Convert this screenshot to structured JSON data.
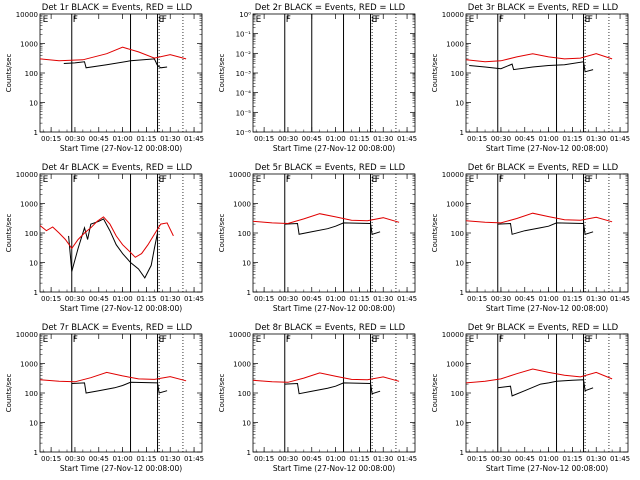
{
  "page": {
    "xlabel": "Start Time (27-Nov-12 00:08:00)",
    "ylabel": "Counts/sec",
    "series_colors": {
      "events": "#000000",
      "lld": "#e00000"
    }
  },
  "chart_data": [
    {
      "type": "line",
      "title": "Det 1r  BLACK = Events, RED = LLD",
      "xlabel": "Start Time (27-Nov-12 00:08:00)",
      "ylabel": "Counts/sec",
      "yscale": "log",
      "ylim": [
        1,
        10000
      ],
      "yticks": [
        1,
        10,
        100,
        1000,
        10000
      ],
      "ytick_labels": [
        "1",
        "10",
        "100",
        "1000",
        "10000"
      ],
      "xlim": [
        "00:08",
        "01:50"
      ],
      "xtick_labels": [
        "00:15",
        "00:30",
        "00:45",
        "01:00",
        "01:15",
        "01:30",
        "01:45"
      ],
      "vlines": [
        "00:28",
        "01:05",
        "01:22"
      ],
      "dotted_vlines": [
        "01:23",
        "01:38"
      ],
      "corner_markers": [
        {
          "label": "E",
          "x": "00:09"
        },
        {
          "label": "F",
          "x": "00:28"
        },
        {
          "label": "E",
          "x": "01:22"
        },
        {
          "label": "F",
          "x": "01:24"
        }
      ],
      "series": [
        {
          "name": "Events",
          "color": "#000000",
          "x": [
            "00:23",
            "00:30",
            "00:36",
            "00:37",
            "00:50",
            "01:05",
            "01:20",
            "01:22",
            "01:24",
            "01:28"
          ],
          "y": [
            210,
            220,
            240,
            150,
            190,
            260,
            300,
            180,
            150,
            160
          ]
        },
        {
          "name": "LLD",
          "color": "#e00000",
          "x": [
            "00:08",
            "00:20",
            "00:35",
            "00:50",
            "01:00",
            "01:10",
            "01:20",
            "01:30",
            "01:40"
          ],
          "y": [
            300,
            260,
            280,
            450,
            750,
            520,
            320,
            420,
            300
          ]
        }
      ]
    },
    {
      "type": "line",
      "title": "Det 2r  BLACK = Events, RED = LLD",
      "xlabel": "Start Time (27-Nov-12 00:08:00)",
      "ylabel": "Counts/sec",
      "yscale": "log",
      "ylim": [
        1e-06,
        1
      ],
      "yticks": [
        1e-06,
        1e-05,
        0.0001,
        0.001,
        0.01,
        0.1,
        1
      ],
      "ytick_labels": [
        "10⁻⁶",
        "10⁻⁵",
        "10⁻⁴",
        "10⁻³",
        "10⁻²",
        "10⁻¹",
        "10⁰"
      ],
      "xlim": [
        "00:08",
        "01:50"
      ],
      "xtick_labels": [
        "00:15",
        "00:30",
        "00:45",
        "01:00",
        "01:15",
        "01:30",
        "01:45"
      ],
      "vlines": [
        "00:28",
        "00:45",
        "01:05",
        "01:22"
      ],
      "dotted_vlines": [
        "01:23",
        "01:38"
      ],
      "corner_markers": [
        {
          "label": "E",
          "x": "00:09"
        },
        {
          "label": "F",
          "x": "00:28"
        },
        {
          "label": "E",
          "x": "01:22"
        },
        {
          "label": "F",
          "x": "01:24"
        }
      ],
      "series": []
    },
    {
      "type": "line",
      "title": "Det 3r  BLACK = Events, RED = LLD",
      "xlabel": "Start Time (27-Nov-12 00:08:00)",
      "ylabel": "Counts/sec",
      "yscale": "log",
      "ylim": [
        1,
        10000
      ],
      "yticks": [
        1,
        10,
        100,
        1000,
        10000
      ],
      "ytick_labels": [
        "1",
        "10",
        "100",
        "1000",
        "10000"
      ],
      "xlim": [
        "00:08",
        "01:50"
      ],
      "xtick_labels": [
        "00:15",
        "00:30",
        "00:45",
        "01:00",
        "01:15",
        "01:30",
        "01:45"
      ],
      "vlines": [
        "00:28",
        "01:05",
        "01:22"
      ],
      "dotted_vlines": [
        "01:23",
        "01:38"
      ],
      "corner_markers": [
        {
          "label": "E",
          "x": "00:09"
        },
        {
          "label": "F",
          "x": "00:28"
        },
        {
          "label": "E",
          "x": "01:22"
        },
        {
          "label": "F",
          "x": "01:24"
        }
      ],
      "series": [
        {
          "name": "Events",
          "color": "#000000",
          "x": [
            "00:10",
            "00:20",
            "00:30",
            "00:37",
            "00:38",
            "00:50",
            "01:00",
            "01:10",
            "01:22",
            "01:23",
            "01:28"
          ],
          "y": [
            180,
            160,
            140,
            200,
            130,
            160,
            180,
            190,
            240,
            110,
            130
          ]
        },
        {
          "name": "LLD",
          "color": "#e00000",
          "x": [
            "00:08",
            "00:20",
            "00:30",
            "00:40",
            "00:50",
            "01:00",
            "01:10",
            "01:20",
            "01:30",
            "01:40"
          ],
          "y": [
            280,
            240,
            260,
            350,
            450,
            350,
            300,
            320,
            450,
            300
          ]
        }
      ]
    },
    {
      "type": "line",
      "title": "Det 4r  BLACK = Events, RED = LLD",
      "xlabel": "Start Time (27-Nov-12 00:08:00)",
      "ylabel": "Counts/sec",
      "yscale": "log",
      "ylim": [
        1,
        10000
      ],
      "yticks": [
        1,
        10,
        100,
        1000,
        10000
      ],
      "ytick_labels": [
        "1",
        "10",
        "100",
        "1000",
        "10000"
      ],
      "xlim": [
        "00:08",
        "01:50"
      ],
      "xtick_labels": [
        "00:15",
        "00:30",
        "00:45",
        "01:00",
        "01:15",
        "01:30",
        "01:45"
      ],
      "vlines": [
        "00:28",
        "01:05",
        "01:22"
      ],
      "dotted_vlines": [
        "01:23",
        "01:38"
      ],
      "corner_markers": [
        {
          "label": "E",
          "x": "00:09"
        },
        {
          "label": "F",
          "x": "00:28"
        },
        {
          "label": "E",
          "x": "01:22"
        },
        {
          "label": "F",
          "x": "01:24"
        }
      ],
      "series": [
        {
          "name": "Events",
          "color": "#000000",
          "x": [
            "00:26",
            "00:28",
            "00:32",
            "00:36",
            "00:38",
            "00:40",
            "00:45",
            "00:48",
            "00:52",
            "00:56",
            "01:00",
            "01:05",
            "01:10",
            "01:14",
            "01:18",
            "01:20",
            "01:22"
          ],
          "y": [
            80,
            5,
            30,
            150,
            60,
            200,
            250,
            300,
            120,
            40,
            20,
            10,
            6,
            3,
            8,
            30,
            100
          ]
        },
        {
          "name": "LLD",
          "color": "#e00000",
          "x": [
            "00:08",
            "00:12",
            "00:16",
            "00:20",
            "00:24",
            "00:28",
            "00:32",
            "00:36",
            "00:40",
            "00:44",
            "00:48",
            "00:52",
            "00:56",
            "01:00",
            "01:04",
            "01:08",
            "01:12",
            "01:16",
            "01:20",
            "01:24",
            "01:28",
            "01:32"
          ],
          "y": [
            180,
            120,
            160,
            100,
            60,
            30,
            60,
            100,
            150,
            250,
            350,
            200,
            80,
            40,
            25,
            15,
            20,
            40,
            90,
            200,
            220,
            80
          ]
        }
      ]
    },
    {
      "type": "line",
      "title": "Det 5r  BLACK = Events, RED = LLD",
      "xlabel": "Start Time (27-Nov-12 00:08:00)",
      "ylabel": "Counts/sec",
      "yscale": "log",
      "ylim": [
        1,
        10000
      ],
      "yticks": [
        1,
        10,
        100,
        1000,
        10000
      ],
      "ytick_labels": [
        "1",
        "10",
        "100",
        "1000",
        "10000"
      ],
      "xlim": [
        "00:08",
        "01:50"
      ],
      "xtick_labels": [
        "00:15",
        "00:30",
        "00:45",
        "01:00",
        "01:15",
        "01:30",
        "01:45"
      ],
      "vlines": [
        "00:28",
        "01:05",
        "01:22"
      ],
      "dotted_vlines": [
        "01:23",
        "01:38"
      ],
      "corner_markers": [
        {
          "label": "E",
          "x": "00:09"
        },
        {
          "label": "F",
          "x": "00:28"
        },
        {
          "label": "E",
          "x": "01:22"
        },
        {
          "label": "F",
          "x": "01:24"
        }
      ],
      "series": [
        {
          "name": "Events",
          "color": "#000000",
          "x": [
            "00:28",
            "00:36",
            "00:37",
            "00:45",
            "00:55",
            "01:00",
            "01:05",
            "01:22",
            "01:23",
            "01:28"
          ],
          "y": [
            200,
            210,
            90,
            110,
            140,
            170,
            220,
            210,
            90,
            110
          ]
        },
        {
          "name": "LLD",
          "color": "#e00000",
          "x": [
            "00:08",
            "00:20",
            "00:30",
            "00:40",
            "00:50",
            "01:00",
            "01:10",
            "01:20",
            "01:30",
            "01:40"
          ],
          "y": [
            250,
            220,
            210,
            300,
            450,
            350,
            270,
            260,
            330,
            230
          ]
        }
      ]
    },
    {
      "type": "line",
      "title": "Det 6r  BLACK = Events, RED = LLD",
      "xlabel": "Start Time (27-Nov-12 00:08:00)",
      "ylabel": "Counts/sec",
      "yscale": "log",
      "ylim": [
        1,
        10000
      ],
      "yticks": [
        1,
        10,
        100,
        1000,
        10000
      ],
      "ytick_labels": [
        "1",
        "10",
        "100",
        "1000",
        "10000"
      ],
      "xlim": [
        "00:08",
        "01:50"
      ],
      "xtick_labels": [
        "00:15",
        "00:30",
        "00:45",
        "01:00",
        "01:15",
        "01:30",
        "01:45"
      ],
      "vlines": [
        "00:28",
        "01:05",
        "01:22"
      ],
      "dotted_vlines": [
        "01:23",
        "01:38"
      ],
      "corner_markers": [
        {
          "label": "E",
          "x": "00:09"
        },
        {
          "label": "F",
          "x": "00:28"
        },
        {
          "label": "E",
          "x": "01:22"
        },
        {
          "label": "F",
          "x": "01:24"
        }
      ],
      "series": [
        {
          "name": "Events",
          "color": "#000000",
          "x": [
            "00:28",
            "00:36",
            "00:37",
            "00:45",
            "00:55",
            "01:00",
            "01:05",
            "01:22",
            "01:23",
            "01:28"
          ],
          "y": [
            200,
            210,
            90,
            120,
            150,
            170,
            220,
            210,
            90,
            110
          ]
        },
        {
          "name": "LLD",
          "color": "#e00000",
          "x": [
            "00:08",
            "00:20",
            "00:30",
            "00:40",
            "00:50",
            "01:00",
            "01:10",
            "01:20",
            "01:30",
            "01:40"
          ],
          "y": [
            260,
            230,
            220,
            310,
            470,
            360,
            280,
            270,
            340,
            240
          ]
        }
      ]
    },
    {
      "type": "line",
      "title": "Det 7r  BLACK = Events, RED = LLD",
      "xlabel": "Start Time (27-Nov-12 00:08:00)",
      "ylabel": "Counts/sec",
      "yscale": "log",
      "ylim": [
        1,
        10000
      ],
      "yticks": [
        1,
        10,
        100,
        1000,
        10000
      ],
      "ytick_labels": [
        "1",
        "10",
        "100",
        "1000",
        "10000"
      ],
      "xlim": [
        "00:08",
        "01:50"
      ],
      "xtick_labels": [
        "00:15",
        "00:30",
        "00:45",
        "01:00",
        "01:15",
        "01:30",
        "01:45"
      ],
      "vlines": [
        "00:28",
        "01:05",
        "01:22"
      ],
      "dotted_vlines": [
        "01:23",
        "01:38"
      ],
      "corner_markers": [
        {
          "label": "E",
          "x": "00:09"
        },
        {
          "label": "F",
          "x": "00:28"
        },
        {
          "label": "E",
          "x": "01:22"
        },
        {
          "label": "F",
          "x": "01:24"
        }
      ],
      "series": [
        {
          "name": "Events",
          "color": "#000000",
          "x": [
            "00:28",
            "00:36",
            "00:37",
            "00:45",
            "00:55",
            "01:00",
            "01:05",
            "01:22",
            "01:23",
            "01:28"
          ],
          "y": [
            210,
            220,
            100,
            120,
            150,
            180,
            230,
            220,
            100,
            120
          ]
        },
        {
          "name": "LLD",
          "color": "#e00000",
          "x": [
            "00:08",
            "00:20",
            "00:30",
            "00:40",
            "00:50",
            "01:00",
            "01:10",
            "01:20",
            "01:30",
            "01:40"
          ],
          "y": [
            280,
            250,
            240,
            330,
            500,
            380,
            300,
            290,
            360,
            260
          ]
        }
      ]
    },
    {
      "type": "line",
      "title": "Det 8r  BLACK = Events, RED = LLD",
      "xlabel": "Start Time (27-Nov-12 00:08:00)",
      "ylabel": "Counts/sec",
      "yscale": "log",
      "ylim": [
        1,
        10000
      ],
      "yticks": [
        1,
        10,
        100,
        1000,
        10000
      ],
      "ytick_labels": [
        "1",
        "10",
        "100",
        "1000",
        "10000"
      ],
      "xlim": [
        "00:08",
        "01:50"
      ],
      "xtick_labels": [
        "00:15",
        "00:30",
        "00:45",
        "01:00",
        "01:15",
        "01:30",
        "01:45"
      ],
      "vlines": [
        "00:28",
        "01:05",
        "01:22"
      ],
      "dotted_vlines": [
        "01:23",
        "01:38"
      ],
      "corner_markers": [
        {
          "label": "E",
          "x": "00:09"
        },
        {
          "label": "F",
          "x": "00:28"
        },
        {
          "label": "E",
          "x": "01:22"
        },
        {
          "label": "F",
          "x": "01:24"
        }
      ],
      "series": [
        {
          "name": "Events",
          "color": "#000000",
          "x": [
            "00:28",
            "00:36",
            "00:37",
            "00:45",
            "00:55",
            "01:00",
            "01:05",
            "01:22",
            "01:23",
            "01:28"
          ],
          "y": [
            200,
            210,
            95,
            115,
            145,
            170,
            220,
            210,
            95,
            115
          ]
        },
        {
          "name": "LLD",
          "color": "#e00000",
          "x": [
            "00:08",
            "00:20",
            "00:30",
            "00:40",
            "00:50",
            "01:00",
            "01:10",
            "01:20",
            "01:30",
            "01:40"
          ],
          "y": [
            270,
            240,
            230,
            320,
            480,
            370,
            290,
            280,
            350,
            250
          ]
        }
      ]
    },
    {
      "type": "line",
      "title": "Det 9r  BLACK = Events, RED = LLD",
      "xlabel": "Start Time (27-Nov-12 00:08:00)",
      "ylabel": "Counts/sec",
      "yscale": "log",
      "ylim": [
        1,
        10000
      ],
      "yticks": [
        1,
        10,
        100,
        1000,
        10000
      ],
      "ytick_labels": [
        "1",
        "10",
        "100",
        "1000",
        "10000"
      ],
      "xlim": [
        "00:08",
        "01:50"
      ],
      "xtick_labels": [
        "00:15",
        "00:30",
        "00:45",
        "01:00",
        "01:15",
        "01:30",
        "01:45"
      ],
      "vlines": [
        "00:28",
        "01:05",
        "01:22"
      ],
      "dotted_vlines": [
        "01:23",
        "01:38"
      ],
      "corner_markers": [
        {
          "label": "E",
          "x": "00:09"
        },
        {
          "label": "F",
          "x": "00:28"
        },
        {
          "label": "E",
          "x": "01:22"
        },
        {
          "label": "F",
          "x": "01:24"
        }
      ],
      "series": [
        {
          "name": "Events",
          "color": "#000000",
          "x": [
            "00:28",
            "00:36",
            "00:37",
            "00:45",
            "00:55",
            "01:00",
            "01:05",
            "01:15",
            "01:22",
            "01:23",
            "01:28"
          ],
          "y": [
            150,
            170,
            80,
            120,
            200,
            220,
            250,
            270,
            280,
            120,
            150
          ]
        },
        {
          "name": "LLD",
          "color": "#e00000",
          "x": [
            "00:08",
            "00:20",
            "00:30",
            "00:40",
            "00:50",
            "01:00",
            "01:10",
            "01:20",
            "01:30",
            "01:40"
          ],
          "y": [
            220,
            250,
            300,
            450,
            650,
            500,
            400,
            350,
            500,
            300
          ]
        }
      ]
    }
  ]
}
